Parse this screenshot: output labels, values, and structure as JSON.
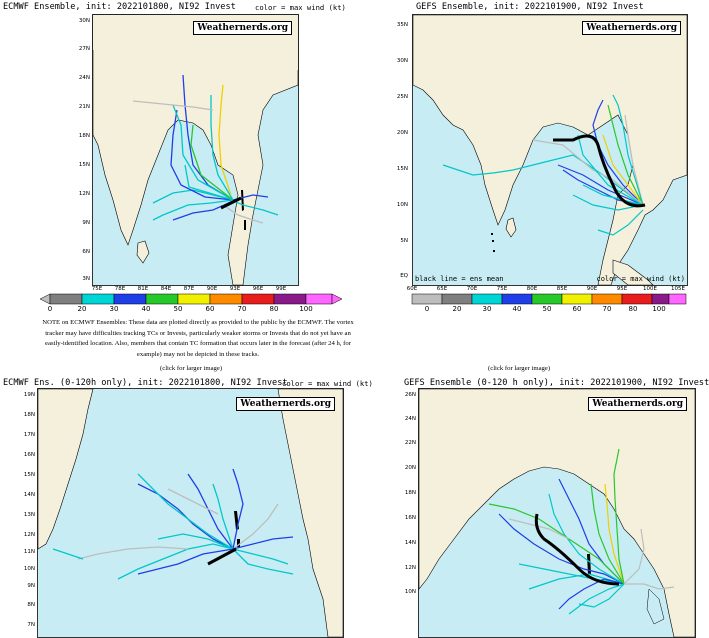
{
  "watermark": "Weathernerds.org",
  "colorbar_ticks": [
    "0",
    "20",
    "30",
    "40",
    "50",
    "60",
    "70",
    "80",
    "100"
  ],
  "colorbar_colors": [
    "#bdbdbd",
    "#7f7f7f",
    "#00d5d5",
    "#1f3fe8",
    "#27c82a",
    "#f0f000",
    "#ff8a00",
    "#e81e1e",
    "#8a1a8a",
    "#ff66ff"
  ],
  "panels": {
    "ecmwf": {
      "title": "ECMWF Ensemble, init: 2022101800, NI92 Invest",
      "right": "color = max wind (kt)",
      "lat_labels": [
        "30N",
        "27N",
        "24N",
        "21N",
        "18N",
        "15N",
        "12N",
        "9N",
        "6N",
        "3N"
      ],
      "lon_labels": [
        "75E",
        "78E",
        "81E",
        "84E",
        "87E",
        "90E",
        "93E",
        "96E",
        "99E"
      ]
    },
    "gefs": {
      "title": "GEFS Ensemble, init: 2022101900, NI92 Invest",
      "lat_labels": [
        "35N",
        "30N",
        "25N",
        "20N",
        "15N",
        "10N",
        "5N",
        "EQ"
      ],
      "lon_labels": [
        "60E",
        "65E",
        "70E",
        "75E",
        "80E",
        "85E",
        "90E",
        "95E",
        "100E",
        "105E"
      ],
      "legend_left": "black line = ens mean",
      "legend_right": "color = max wind (kt)"
    },
    "ecmwf120": {
      "title": "ECMWF Ens. (0-120h only), init: 2022101800, NI92 Invest",
      "right": "color = max wind (kt)",
      "lat_labels": [
        "19N",
        "18N",
        "17N",
        "16N",
        "15N",
        "14N",
        "13N",
        "12N",
        "11N",
        "10N",
        "9N",
        "8N",
        "7N"
      ]
    },
    "gefs120": {
      "title": "GEFS Ensemble (0-120 h only), init: 2022101900, NI92 Invest",
      "lat_labels": [
        "26N",
        "24N",
        "22N",
        "20N",
        "18N",
        "16N",
        "14N",
        "12N",
        "10N"
      ]
    }
  },
  "note": "NOTE on ECMWF Ensembles: These data are plotted directly as provided to the public by the ECMWF. The vortex tracker may have difficulties tracking TCs or Invests, particularly weaker storms or Invests that do not yet have an easily-identified location. Also, members that contain TC formation that occurs later in the forecast (after 24 h, for example) may not be depicted in these tracks.",
  "click_label": "(click for larger image)"
}
